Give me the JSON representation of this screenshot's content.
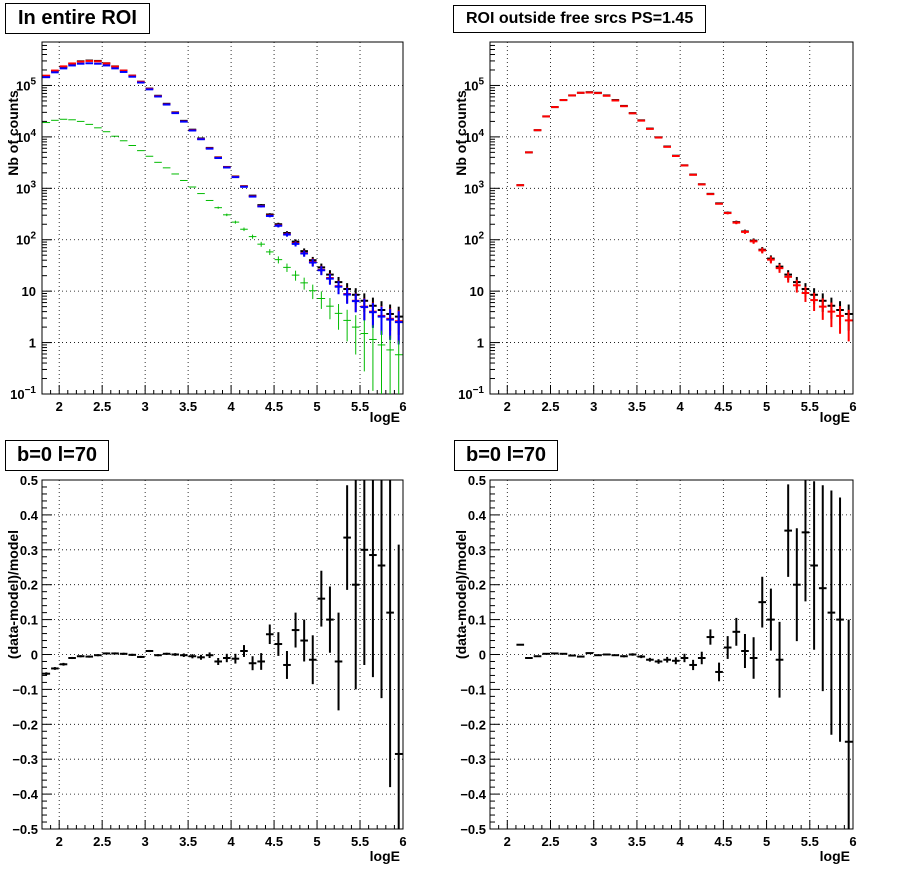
{
  "chart_data": [
    {
      "type": "scatter",
      "title": "In entire ROI",
      "xlabel": "logE",
      "ylabel": "Nb of counts",
      "xlim": [
        1.8,
        6.0
      ],
      "ylim": [
        0.1,
        700000
      ],
      "ylog": true,
      "grid": true,
      "x_ticks": [
        2,
        2.5,
        3,
        3.5,
        4,
        4.5,
        5,
        5.5,
        6
      ],
      "x_tick_labels": [
        "2",
        "2.5",
        "3",
        "3.5",
        "4",
        "4.5",
        "5",
        "5.5",
        "6"
      ],
      "y_ticks": [
        0.1,
        1,
        10,
        100,
        1000,
        10000,
        100000
      ],
      "y_tick_labels": [
        [
          "10",
          "−1"
        ],
        [
          "1",
          ""
        ],
        [
          "10",
          ""
        ],
        [
          "10",
          "2"
        ],
        [
          "10",
          "3"
        ],
        [
          "10",
          "4"
        ],
        [
          "10",
          "5"
        ]
      ],
      "x": [
        1.85,
        1.95,
        2.05,
        2.15,
        2.25,
        2.35,
        2.45,
        2.55,
        2.65,
        2.75,
        2.85,
        2.95,
        3.05,
        3.15,
        3.25,
        3.35,
        3.45,
        3.55,
        3.65,
        3.75,
        3.85,
        3.95,
        4.05,
        4.15,
        4.25,
        4.35,
        4.45,
        4.55,
        4.65,
        4.75,
        4.85,
        4.95,
        5.05,
        5.15,
        5.25,
        5.35,
        5.45,
        5.55,
        5.65,
        5.75,
        5.85,
        5.95
      ],
      "series": [
        {
          "color": "#000000",
          "values": [
            150000,
            190000,
            230000,
            265000,
            295000,
            305000,
            300000,
            270000,
            235000,
            195000,
            155000,
            118000,
            87000,
            63000,
            44000,
            30000,
            20500,
            13800,
            9300,
            6100,
            4000,
            2600,
            1700,
            1100,
            720,
            470,
            310,
            200,
            135,
            92,
            60,
            40,
            29,
            21,
            15,
            11,
            8.5,
            6.5,
            5.2,
            4.3,
            3.6,
            3.2
          ]
        },
        {
          "color": "#ff0000",
          "values": [
            155000,
            195000,
            235000,
            268000,
            290000,
            300000,
            295000,
            268000,
            233000,
            195000,
            155000,
            118000,
            86000,
            62000,
            43000,
            29500,
            20000,
            13500,
            9100,
            6000,
            3950,
            2580,
            1680,
            1090,
            700,
            450,
            295,
            190,
            128,
            85,
            55,
            37,
            26,
            18,
            12.5,
            8.8,
            6.5,
            5,
            4,
            3.3,
            2.9,
            2.6
          ]
        },
        {
          "color": "#0000ff",
          "values": [
            145000,
            180000,
            215000,
            245000,
            265000,
            270000,
            265000,
            245000,
            215000,
            183000,
            148000,
            114000,
            84000,
            61000,
            42500,
            29000,
            19800,
            13300,
            9000,
            5900,
            3880,
            2540,
            1650,
            1070,
            690,
            445,
            290,
            187,
            126,
            83,
            54,
            36,
            25.5,
            17.5,
            12.2,
            8.6,
            6.4,
            4.9,
            3.9,
            3.2,
            2.8,
            2.5
          ]
        },
        {
          "color": "#00bb00",
          "values": [
            19000,
            21000,
            22000,
            21500,
            20000,
            17500,
            15000,
            12600,
            10300,
            8400,
            6800,
            5400,
            4200,
            3200,
            2500,
            1900,
            1420,
            1060,
            790,
            580,
            420,
            305,
            220,
            160,
            115,
            82,
            58,
            41,
            29,
            20.5,
            14.5,
            10.2,
            7.2,
            5.1,
            3.7,
            2.7,
            2.0,
            1.5,
            1.15,
            0.9,
            0.72,
            0.58
          ]
        }
      ]
    },
    {
      "type": "scatter",
      "title": "ROI outside free srcs PS=1.45",
      "xlabel": "logE",
      "ylabel": "Nb of counts",
      "xlim": [
        1.8,
        6.0
      ],
      "ylim": [
        0.1,
        700000
      ],
      "ylog": true,
      "grid": true,
      "x_ticks": [
        2,
        2.5,
        3,
        3.5,
        4,
        4.5,
        5,
        5.5,
        6
      ],
      "x_tick_labels": [
        "2",
        "2.5",
        "3",
        "3.5",
        "4",
        "4.5",
        "5",
        "5.5",
        "6"
      ],
      "y_ticks": [
        0.1,
        1,
        10,
        100,
        1000,
        10000,
        100000
      ],
      "y_tick_labels": [
        [
          "10",
          "−1"
        ],
        [
          "1",
          ""
        ],
        [
          "10",
          ""
        ],
        [
          "10",
          "2"
        ],
        [
          "10",
          "3"
        ],
        [
          "10",
          "4"
        ],
        [
          "10",
          "5"
        ]
      ],
      "x": [
        2.15,
        2.25,
        2.35,
        2.45,
        2.55,
        2.65,
        2.75,
        2.85,
        2.95,
        3.05,
        3.15,
        3.25,
        3.35,
        3.45,
        3.55,
        3.65,
        3.75,
        3.85,
        3.95,
        4.05,
        4.15,
        4.25,
        4.35,
        4.45,
        4.55,
        4.65,
        4.75,
        4.85,
        4.95,
        5.05,
        5.15,
        5.25,
        5.35,
        5.45,
        5.55,
        5.65,
        5.75,
        5.85,
        5.95
      ],
      "series": [
        {
          "color": "#000000",
          "values": [
            1150,
            5000,
            13500,
            25000,
            38000,
            52000,
            64000,
            72000,
            74000,
            72000,
            64000,
            52000,
            40000,
            29000,
            21000,
            14500,
            9800,
            6500,
            4300,
            2800,
            1850,
            1200,
            780,
            510,
            335,
            220,
            145,
            96,
            64,
            43,
            30,
            21,
            15,
            11,
            8.5,
            6.5,
            5.2,
            4.3,
            3.6
          ]
        },
        {
          "color": "#ff0000",
          "values": [
            1150,
            5000,
            13500,
            25000,
            38000,
            52000,
            64000,
            72000,
            73000,
            71000,
            63000,
            51000,
            39500,
            28700,
            20700,
            14300,
            9700,
            6400,
            4250,
            2780,
            1830,
            1190,
            770,
            500,
            330,
            215,
            142,
            93,
            62,
            41,
            28,
            19,
            13,
            9.2,
            6.7,
            5,
            4,
            3.3,
            2.7
          ]
        }
      ]
    },
    {
      "type": "scatter",
      "title": "b=0 l=70",
      "xlabel": "logE",
      "ylabel": "(data-model)/model",
      "xlim": [
        1.8,
        6.0
      ],
      "ylim": [
        -0.5,
        0.5
      ],
      "grid": true,
      "x_ticks": [
        2,
        2.5,
        3,
        3.5,
        4,
        4.5,
        5,
        5.5,
        6
      ],
      "x_tick_labels": [
        "2",
        "2.5",
        "3",
        "3.5",
        "4",
        "4.5",
        "5",
        "5.5",
        "6"
      ],
      "y_ticks": [
        -0.5,
        -0.4,
        -0.3,
        -0.2,
        -0.1,
        0,
        0.1,
        0.2,
        0.3,
        0.4,
        0.5
      ],
      "y_tick_labels": [
        "−0.5",
        "−0.4",
        "−0.3",
        "−0.2",
        "−0.1",
        "0",
        "0.1",
        "0.2",
        "0.3",
        "0.4",
        "0.5"
      ],
      "x": [
        1.85,
        1.95,
        2.05,
        2.15,
        2.25,
        2.35,
        2.45,
        2.55,
        2.65,
        2.75,
        2.85,
        2.95,
        3.05,
        3.15,
        3.25,
        3.35,
        3.45,
        3.55,
        3.65,
        3.75,
        3.85,
        3.95,
        4.05,
        4.15,
        4.25,
        4.35,
        4.45,
        4.55,
        4.65,
        4.75,
        4.85,
        4.95,
        5.05,
        5.15,
        5.25,
        5.35,
        5.45,
        5.55,
        5.65,
        5.75,
        5.85,
        5.95
      ],
      "values": [
        -0.055,
        -0.04,
        -0.028,
        -0.01,
        -0.005,
        -0.006,
        -0.002,
        0.003,
        0.003,
        0.002,
        -0.001,
        -0.007,
        0.01,
        -0.002,
        0.002,
        0.0,
        -0.002,
        -0.005,
        -0.008,
        -0.002,
        -0.02,
        -0.01,
        -0.012,
        0.01,
        -0.025,
        -0.02,
        0.058,
        0.03,
        -0.03,
        0.07,
        0.04,
        -0.015,
        0.16,
        0.1,
        -0.02,
        0.335,
        0.2,
        0.3,
        0.285,
        0.255,
        0.12,
        -0.285
      ],
      "errors": [
        0.004,
        0.004,
        0.004,
        0.003,
        0.003,
        0.003,
        0.003,
        0.003,
        0.003,
        0.003,
        0.003,
        0.003,
        0.003,
        0.003,
        0.003,
        0.004,
        0.005,
        0.006,
        0.007,
        0.008,
        0.01,
        0.012,
        0.014,
        0.017,
        0.02,
        0.024,
        0.028,
        0.034,
        0.04,
        0.05,
        0.06,
        0.07,
        0.08,
        0.095,
        0.14,
        0.15,
        0.3,
        0.33,
        0.35,
        0.38,
        0.5,
        0.6
      ]
    },
    {
      "type": "scatter",
      "title": "b=0 l=70",
      "xlabel": "logE",
      "ylabel": "(data-model)/model",
      "xlim": [
        1.8,
        6.0
      ],
      "ylim": [
        -0.5,
        0.5
      ],
      "grid": true,
      "x_ticks": [
        2,
        2.5,
        3,
        3.5,
        4,
        4.5,
        5,
        5.5,
        6
      ],
      "x_tick_labels": [
        "2",
        "2.5",
        "3",
        "3.5",
        "4",
        "4.5",
        "5",
        "5.5",
        "6"
      ],
      "y_ticks": [
        -0.5,
        -0.4,
        -0.3,
        -0.2,
        -0.1,
        0,
        0.1,
        0.2,
        0.3,
        0.4,
        0.5
      ],
      "y_tick_labels": [
        "−0.5",
        "−0.4",
        "−0.3",
        "−0.2",
        "−0.1",
        "0",
        "0.1",
        "0.2",
        "0.3",
        "0.4",
        "0.5"
      ],
      "x": [
        2.15,
        2.25,
        2.35,
        2.45,
        2.55,
        2.65,
        2.75,
        2.85,
        2.95,
        3.05,
        3.15,
        3.25,
        3.35,
        3.45,
        3.55,
        3.65,
        3.75,
        3.85,
        3.95,
        4.05,
        4.15,
        4.25,
        4.35,
        4.45,
        4.55,
        4.65,
        4.75,
        4.85,
        4.95,
        5.05,
        5.15,
        5.25,
        5.35,
        5.45,
        5.55,
        5.65,
        5.75,
        5.85,
        5.95
      ],
      "values": [
        0.028,
        -0.01,
        -0.005,
        0.002,
        0.003,
        0.002,
        -0.003,
        -0.006,
        0.004,
        -0.002,
        0.0,
        -0.002,
        -0.005,
        0.0,
        -0.006,
        -0.015,
        -0.02,
        -0.015,
        -0.018,
        -0.01,
        -0.03,
        -0.01,
        0.05,
        -0.05,
        0.02,
        0.065,
        0.01,
        -0.01,
        0.15,
        0.1,
        -0.015,
        0.355,
        0.2,
        0.35,
        0.255,
        0.19,
        0.12,
        0.1,
        -0.25
      ]
    }
  ]
}
